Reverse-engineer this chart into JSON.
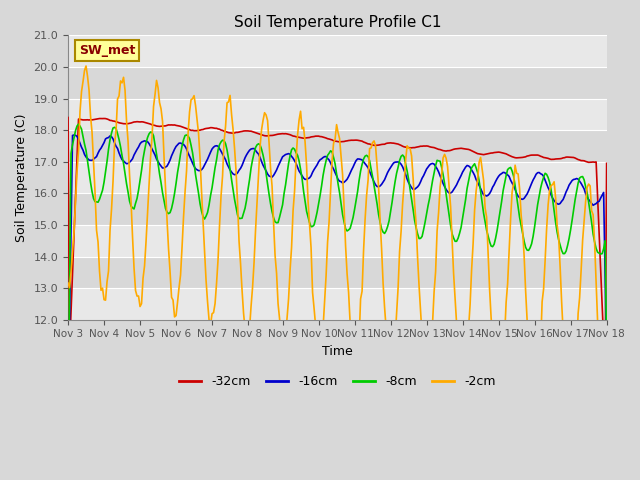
{
  "title": "Soil Temperature Profile C1",
  "xlabel": "Time",
  "ylabel": "Soil Temperature (C)",
  "ylim": [
    12.0,
    21.0
  ],
  "yticks": [
    12.0,
    13.0,
    14.0,
    15.0,
    16.0,
    17.0,
    18.0,
    19.0,
    20.0,
    21.0
  ],
  "xtick_labels": [
    "Nov 3",
    "Nov 4",
    "Nov 5",
    "Nov 6",
    "Nov 7",
    "Nov 8",
    "Nov 9",
    "Nov 10",
    "Nov 11",
    "Nov 12",
    "Nov 13",
    "Nov 14",
    "Nov 15",
    "Nov 16",
    "Nov 17",
    "Nov 18"
  ],
  "legend_label": "SW_met",
  "legend_box_color": "#ffff99",
  "legend_box_edge": "#aa8800",
  "series_labels": [
    "-32cm",
    "-16cm",
    "-8cm",
    "-2cm"
  ],
  "series_colors": [
    "#cc0000",
    "#0000cc",
    "#00cc00",
    "#ffaa00"
  ],
  "n_points": 360,
  "background_color": "#d8d8d8",
  "plot_bg_color": "#e8e8e8",
  "band_colors": [
    "#e8e8e8",
    "#d8d8d8"
  ],
  "grid_color": "#ffffff"
}
